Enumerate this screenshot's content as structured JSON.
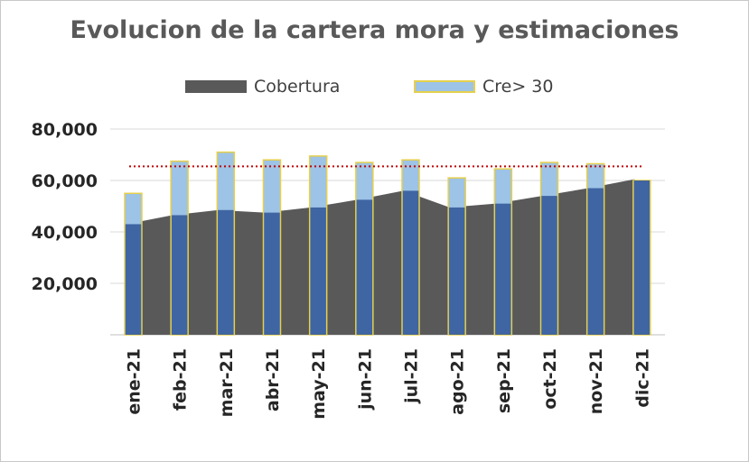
{
  "chart_data": {
    "type": "bar",
    "title": "Evolucion de la cartera mora y estimaciones",
    "categories": [
      "ene-21",
      "feb-21",
      "mar-21",
      "abr-21",
      "may-21",
      "jun-21",
      "jul-21",
      "ago-21",
      "sep-21",
      "oct-21",
      "nov-21",
      "dic-21"
    ],
    "series": [
      {
        "name": "Cobertura",
        "kind": "area",
        "color": "#595959",
        "values": [
          43000,
          46500,
          48500,
          47500,
          49500,
          52500,
          56000,
          49500,
          51000,
          54000,
          57000,
          60500
        ]
      },
      {
        "name": "Cre> 30",
        "kind": "bar",
        "color": "#9dc3e6",
        "border_color": "#e6d04d",
        "values": [
          55000,
          67500,
          71000,
          68000,
          69500,
          67000,
          68000,
          61000,
          64500,
          67000,
          66500,
          60000
        ]
      }
    ],
    "reference_line": {
      "value": 65500,
      "color": "#c00000",
      "style": "dotted"
    },
    "y_ticks": [
      "20,000",
      "40,000",
      "60,000",
      "80,000"
    ],
    "ylim": [
      0,
      80000
    ],
    "xlabel": "",
    "ylabel": "",
    "grid": true,
    "legend": "top"
  }
}
